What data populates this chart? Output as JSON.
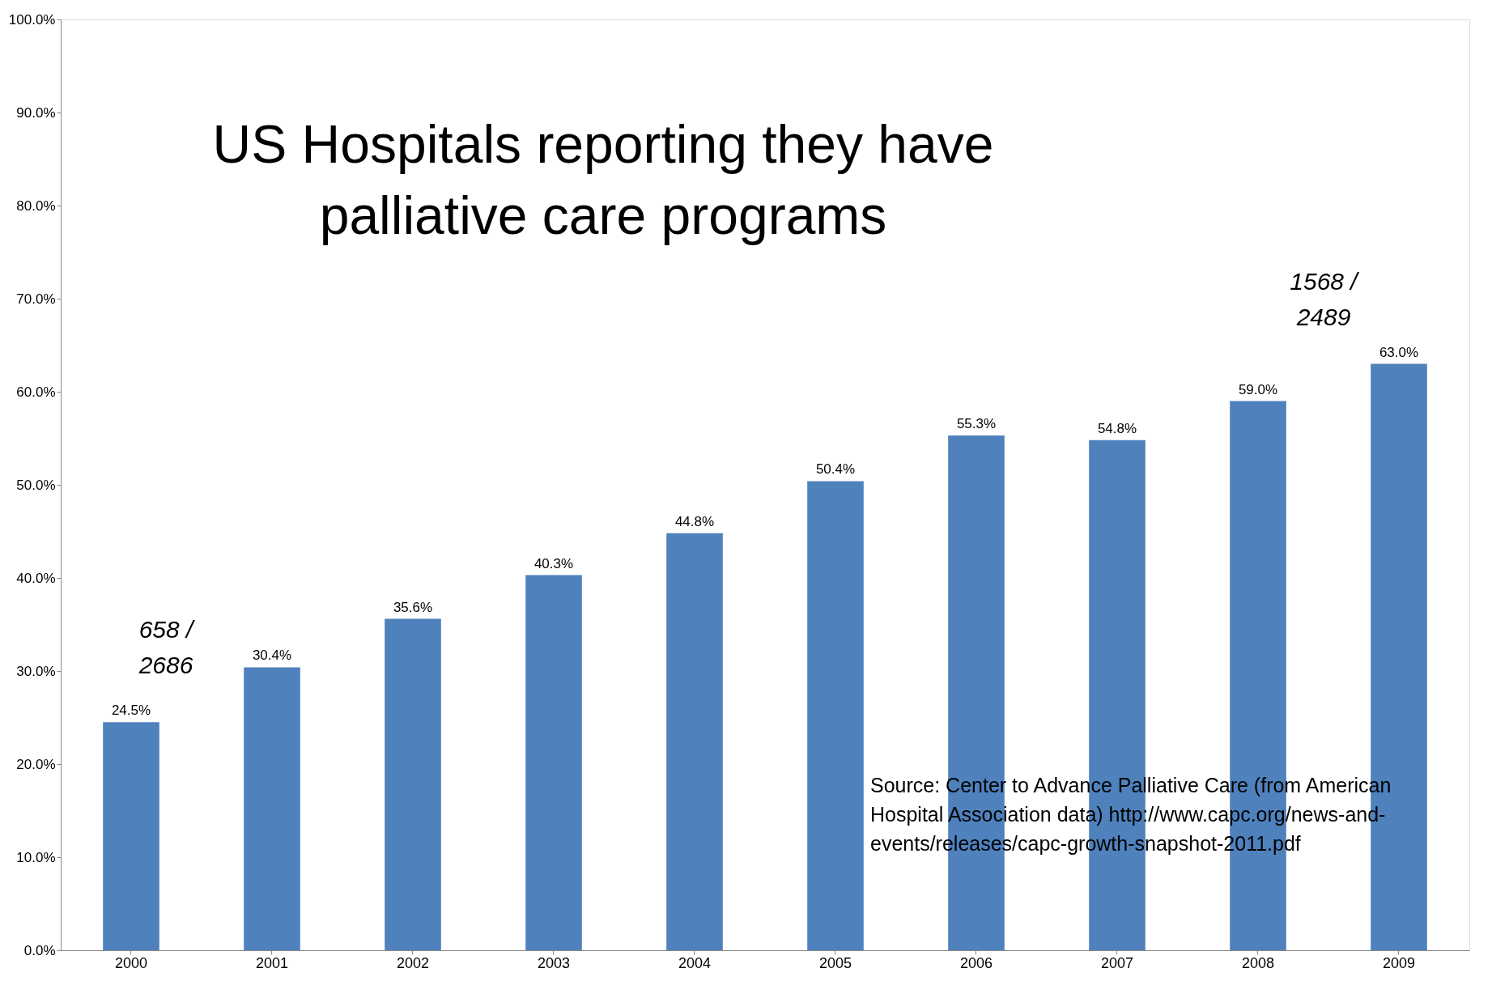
{
  "chart_data": {
    "type": "bar",
    "title": "US Hospitals reporting they have palliative care programs",
    "categories": [
      "2000",
      "2001",
      "2002",
      "2003",
      "2004",
      "2005",
      "2006",
      "2007",
      "2008",
      "2009"
    ],
    "series": [
      {
        "color": "#4f81bd",
        "values": [
          24.5,
          30.4,
          35.6,
          40.3,
          44.8,
          50.4,
          55.3,
          54.8,
          59.0,
          63.0
        ],
        "value_labels": [
          "24.5%",
          "30.4%",
          "35.6%",
          "40.3%",
          "44.8%",
          "50.4%",
          "55.3%",
          "54.8%",
          "59.0%",
          "63.0%"
        ]
      }
    ],
    "ylim": [
      0,
      100
    ],
    "yticks": [
      {
        "value": 0,
        "label": "0.0%"
      },
      {
        "value": 10,
        "label": "10.0%"
      },
      {
        "value": 20,
        "label": "20.0%"
      },
      {
        "value": 30,
        "label": "30.0%"
      },
      {
        "value": 40,
        "label": "40.0%"
      },
      {
        "value": 50,
        "label": "50.0%"
      },
      {
        "value": 60,
        "label": "60.0%"
      },
      {
        "value": 70,
        "label": "70.0%"
      },
      {
        "value": 80,
        "label": "80.0%"
      },
      {
        "value": 90,
        "label": "90.0%"
      },
      {
        "value": 100,
        "label": "100.0%"
      }
    ],
    "grid": false,
    "annotations": [
      "658 / 2686",
      "1568 / 2489",
      "Source: Center to Advance Palliative Care (from American Hospital Association data) http://www.capc.org/news-and-events/releases/capc-growth-snapshot-2011.pdf"
    ]
  }
}
